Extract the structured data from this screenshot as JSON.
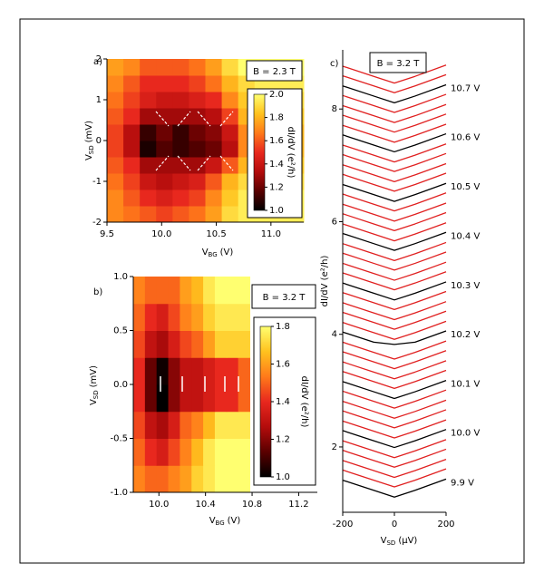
{
  "chart_data": [
    {
      "type": "heatmap",
      "panel": "a)",
      "title": "B = 2.3 T",
      "xlabel": {
        "v": "V",
        "sub": "BG",
        "unit": "(V)"
      },
      "ylabel": {
        "v": "V",
        "sub": "SD",
        "unit": "(mV)"
      },
      "xlim": [
        9.5,
        11.3
      ],
      "ylim": [
        -2,
        2
      ],
      "xticks": [
        9.5,
        {
          "value": 10,
          "label": "10.0"
        },
        10.5,
        {
          "value": 11,
          "label": "11.0"
        }
      ],
      "yticks": [
        -2,
        -1,
        0,
        1,
        2
      ],
      "xbins": [
        9.5,
        9.65,
        9.8,
        9.95,
        10.1,
        10.25,
        10.4,
        10.55,
        10.7,
        10.85,
        11.0,
        11.15,
        11.3
      ],
      "ybins": [
        -2,
        -1.6,
        -1.2,
        -0.8,
        -0.4,
        0,
        0.4,
        0.8,
        1.2,
        1.6,
        2
      ],
      "z": [
        [
          1.7,
          1.65,
          1.6,
          1.55,
          1.6,
          1.65,
          1.75,
          1.9,
          1.95,
          1.95,
          1.95,
          1.95
        ],
        [
          1.7,
          1.6,
          1.5,
          1.45,
          1.5,
          1.55,
          1.7,
          1.85,
          1.95,
          1.95,
          1.95,
          1.95
        ],
        [
          1.65,
          1.55,
          1.4,
          1.35,
          1.4,
          1.45,
          1.6,
          1.8,
          1.9,
          1.9,
          1.9,
          1.9
        ],
        [
          1.6,
          1.5,
          1.3,
          1.3,
          1.3,
          1.3,
          1.4,
          1.6,
          1.8,
          1.85,
          1.85,
          1.85
        ],
        [
          1.55,
          1.35,
          1.05,
          1.15,
          1.1,
          1.15,
          1.2,
          1.35,
          1.7,
          1.8,
          1.8,
          1.8
        ],
        [
          1.55,
          1.35,
          1.1,
          1.2,
          1.1,
          1.2,
          1.25,
          1.4,
          1.7,
          1.8,
          1.8,
          1.8
        ],
        [
          1.6,
          1.5,
          1.3,
          1.3,
          1.3,
          1.3,
          1.35,
          1.55,
          1.8,
          1.85,
          1.85,
          1.85
        ],
        [
          1.65,
          1.55,
          1.45,
          1.4,
          1.4,
          1.45,
          1.5,
          1.7,
          1.85,
          1.9,
          1.9,
          1.9
        ],
        [
          1.7,
          1.6,
          1.5,
          1.5,
          1.5,
          1.55,
          1.65,
          1.8,
          1.9,
          1.95,
          1.95,
          1.95
        ],
        [
          1.75,
          1.7,
          1.6,
          1.6,
          1.6,
          1.65,
          1.75,
          1.9,
          2.0,
          2.0,
          2.0,
          2.0
        ]
      ],
      "colors": [
        "#000000",
        "#5a0000",
        "#b40c0c",
        "#e8281e",
        "#ff7a1a",
        "#ffc21e",
        "#ffff70"
      ],
      "colorbar": {
        "label": "dI/dV (e²/h)",
        "lim": [
          1,
          2
        ],
        "ticks": [
          {
            "value": 1,
            "label": "1.0"
          },
          1.2,
          1.4,
          1.6,
          1.8,
          {
            "value": 2,
            "label": "2.0"
          }
        ]
      }
    },
    {
      "type": "heatmap",
      "panel": "b)",
      "title": "B = 3.2 T",
      "xlabel": {
        "v": "V",
        "sub": "BG",
        "unit": "(V)"
      },
      "ylabel": {
        "v": "V",
        "sub": "SD",
        "unit": "(mV)"
      },
      "xlim": [
        9.78,
        11.36
      ],
      "ylim": [
        -1,
        1
      ],
      "xticks": [
        {
          "value": 10,
          "label": "10.0"
        },
        10.4,
        10.8,
        11.2
      ],
      "yticks": [
        {
          "value": -1,
          "label": "-1.0"
        },
        -0.5,
        {
          "value": 0,
          "label": "0.0"
        },
        0.5,
        {
          "value": 1,
          "label": "1.0"
        }
      ],
      "xbins": [
        9.78,
        9.88,
        9.98,
        10.08,
        10.18,
        10.28,
        10.38,
        10.48,
        10.58,
        10.68,
        10.78
      ],
      "ybins": [
        -1,
        -0.75,
        -0.5,
        -0.25,
        0,
        0.25,
        0.5,
        0.75,
        1
      ],
      "z": [
        [
          1.55,
          1.5,
          1.5,
          1.55,
          1.6,
          1.7,
          1.75,
          1.8,
          1.8,
          1.8
        ],
        [
          1.5,
          1.4,
          1.35,
          1.45,
          1.55,
          1.65,
          1.75,
          1.8,
          1.8,
          1.8
        ],
        [
          1.45,
          1.3,
          1.25,
          1.35,
          1.5,
          1.55,
          1.65,
          1.75,
          1.75,
          1.75
        ],
        [
          1.4,
          1.15,
          1.0,
          1.2,
          1.3,
          1.3,
          1.35,
          1.4,
          1.4,
          1.5
        ],
        [
          1.4,
          1.15,
          1.02,
          1.2,
          1.3,
          1.3,
          1.35,
          1.4,
          1.4,
          1.5
        ],
        [
          1.45,
          1.3,
          1.25,
          1.35,
          1.45,
          1.5,
          1.6,
          1.7,
          1.7,
          1.7
        ],
        [
          1.5,
          1.4,
          1.35,
          1.45,
          1.55,
          1.6,
          1.7,
          1.75,
          1.75,
          1.75
        ],
        [
          1.55,
          1.5,
          1.5,
          1.5,
          1.6,
          1.65,
          1.75,
          1.8,
          1.8,
          1.8
        ]
      ],
      "colors": [
        "#000000",
        "#5a0000",
        "#b40c0c",
        "#e8281e",
        "#ff7a1a",
        "#ffc21e",
        "#ffff70"
      ],
      "colorbar": {
        "label": "dI/dV (e²/h)",
        "lim": [
          1,
          1.8
        ],
        "ticks": [
          {
            "value": 1,
            "label": "1.0"
          },
          1.2,
          1.4,
          1.6,
          1.8
        ]
      }
    },
    {
      "type": "line",
      "panel": "c)",
      "title": "B = 3.2 T",
      "xlabel": {
        "v": "V",
        "sub": "SD",
        "unit": "(μV)"
      },
      "ylabel": {
        "v": "dI/dV (e²/h)",
        "sub": "",
        "unit": ""
      },
      "xlim": [
        -200,
        200
      ],
      "ylim": [
        0.84,
        9.05
      ],
      "xticks": [
        -200,
        0,
        200
      ],
      "yticks": [
        2,
        4,
        6,
        8
      ],
      "x": [
        -200,
        -80,
        0,
        80,
        200
      ],
      "series": [
        {
          "name": "9.9 V",
          "color": "#000000",
          "values": [
            1.41,
            1.23,
            1.11,
            1.23,
            1.43
          ]
        },
        {
          "color": "#e02020",
          "values": [
            1.59,
            1.41,
            1.29,
            1.41,
            1.61
          ]
        },
        {
          "color": "#e02020",
          "values": [
            1.76,
            1.58,
            1.46,
            1.58,
            1.78
          ]
        },
        {
          "color": "#e02020",
          "values": [
            1.94,
            1.76,
            1.64,
            1.76,
            1.96
          ]
        },
        {
          "color": "#e02020",
          "values": [
            2.11,
            1.93,
            1.81,
            1.93,
            2.13
          ]
        },
        {
          "name": "10.0 V",
          "color": "#000000",
          "values": [
            2.29,
            2.11,
            1.99,
            2.11,
            2.31
          ]
        },
        {
          "color": "#e02020",
          "values": [
            2.46,
            2.28,
            2.16,
            2.28,
            2.48
          ]
        },
        {
          "color": "#e02020",
          "values": [
            2.64,
            2.46,
            2.34,
            2.46,
            2.66
          ]
        },
        {
          "color": "#e02020",
          "values": [
            2.81,
            2.63,
            2.51,
            2.63,
            2.83
          ]
        },
        {
          "color": "#e02020",
          "values": [
            2.99,
            2.81,
            2.69,
            2.81,
            3.01
          ]
        },
        {
          "name": "10.1 V",
          "color": "#000000",
          "values": [
            3.16,
            2.98,
            2.86,
            2.98,
            3.18
          ]
        },
        {
          "color": "#e02020",
          "values": [
            3.34,
            3.16,
            3.04,
            3.16,
            3.36
          ]
        },
        {
          "color": "#e02020",
          "values": [
            3.51,
            3.33,
            3.21,
            3.33,
            3.53
          ]
        },
        {
          "color": "#e02020",
          "values": [
            3.69,
            3.51,
            3.39,
            3.51,
            3.71
          ]
        },
        {
          "color": "#e02020",
          "values": [
            3.86,
            3.68,
            3.56,
            3.68,
            3.88
          ]
        },
        {
          "name": "10.2 V",
          "color": "#000000",
          "values": [
            4.04,
            3.86,
            3.82,
            3.86,
            4.06
          ]
        },
        {
          "color": "#e02020",
          "values": [
            4.21,
            4.03,
            3.91,
            4.03,
            4.23
          ]
        },
        {
          "color": "#e02020",
          "values": [
            4.39,
            4.21,
            4.09,
            4.21,
            4.41
          ]
        },
        {
          "color": "#e02020",
          "values": [
            4.56,
            4.38,
            4.26,
            4.38,
            4.58
          ]
        },
        {
          "color": "#e02020",
          "values": [
            4.74,
            4.56,
            4.44,
            4.56,
            4.76
          ]
        },
        {
          "name": "10.3 V",
          "color": "#000000",
          "values": [
            4.91,
            4.73,
            4.61,
            4.73,
            4.93
          ]
        },
        {
          "color": "#e02020",
          "values": [
            5.09,
            4.91,
            4.79,
            4.91,
            5.11
          ]
        },
        {
          "color": "#e02020",
          "values": [
            5.26,
            5.08,
            4.96,
            5.08,
            5.28
          ]
        },
        {
          "color": "#e02020",
          "values": [
            5.44,
            5.26,
            5.14,
            5.26,
            5.46
          ]
        },
        {
          "color": "#e02020",
          "values": [
            5.61,
            5.43,
            5.31,
            5.43,
            5.63
          ]
        },
        {
          "name": "10.4 V",
          "color": "#000000",
          "values": [
            5.79,
            5.61,
            5.49,
            5.61,
            5.81
          ]
        },
        {
          "color": "#e02020",
          "values": [
            5.96,
            5.78,
            5.66,
            5.78,
            5.98
          ]
        },
        {
          "color": "#e02020",
          "values": [
            6.14,
            5.96,
            5.84,
            5.96,
            6.16
          ]
        },
        {
          "color": "#e02020",
          "values": [
            6.31,
            6.13,
            6.01,
            6.13,
            6.33
          ]
        },
        {
          "color": "#e02020",
          "values": [
            6.49,
            6.31,
            6.19,
            6.31,
            6.51
          ]
        },
        {
          "name": "10.5 V",
          "color": "#000000",
          "values": [
            6.66,
            6.48,
            6.36,
            6.48,
            6.68
          ]
        },
        {
          "color": "#e02020",
          "values": [
            6.84,
            6.66,
            6.54,
            6.66,
            6.86
          ]
        },
        {
          "color": "#e02020",
          "values": [
            7.01,
            6.83,
            6.71,
            6.83,
            7.03
          ]
        },
        {
          "color": "#e02020",
          "values": [
            7.19,
            7.01,
            6.89,
            7.01,
            7.21
          ]
        },
        {
          "color": "#e02020",
          "values": [
            7.36,
            7.18,
            7.06,
            7.18,
            7.38
          ]
        },
        {
          "name": "10.6 V",
          "color": "#000000",
          "values": [
            7.54,
            7.36,
            7.24,
            7.36,
            7.56
          ]
        },
        {
          "color": "#e02020",
          "values": [
            7.71,
            7.53,
            7.41,
            7.53,
            7.73
          ]
        },
        {
          "color": "#e02020",
          "values": [
            7.89,
            7.71,
            7.59,
            7.71,
            7.91
          ]
        },
        {
          "color": "#e02020",
          "values": [
            8.06,
            7.88,
            7.76,
            7.88,
            8.08
          ]
        },
        {
          "color": "#e02020",
          "values": [
            8.24,
            8.06,
            7.94,
            8.06,
            8.26
          ]
        },
        {
          "name": "10.7 V",
          "color": "#000000",
          "values": [
            8.41,
            8.23,
            8.11,
            8.23,
            8.43
          ]
        },
        {
          "color": "#e02020",
          "values": [
            8.59,
            8.41,
            8.29,
            8.41,
            8.61
          ]
        },
        {
          "color": "#e02020",
          "values": [
            8.76,
            8.58,
            8.46,
            8.58,
            8.78
          ]
        }
      ]
    }
  ]
}
